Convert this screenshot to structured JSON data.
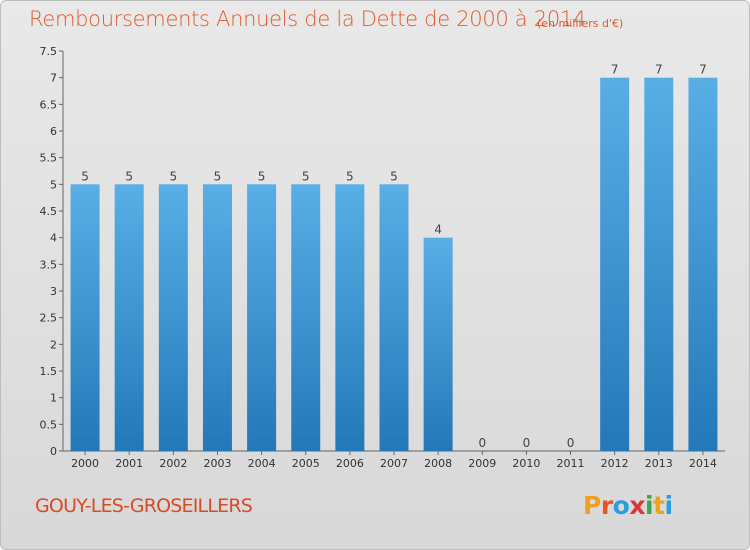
{
  "header": {
    "title": "Remboursements Annuels de la Dette de 2000 à 2014",
    "unit_note": "(en milliers d'€)"
  },
  "footer": {
    "commune": "GOUY-LES-GROSEILLERS",
    "logo": [
      "P",
      "r",
      "o",
      "x",
      "i",
      "t",
      "i"
    ]
  },
  "colors": {
    "title": "#e05a2b",
    "bar_light": "#5aaee6",
    "bar_dark": "#2478b8",
    "logo": [
      "#f0a020",
      "#e8541f",
      "#2a9de0",
      "#d93838",
      "#3aa84a",
      "#f0a020",
      "#2a9de0"
    ]
  },
  "chart_data": {
    "type": "bar",
    "title": "Remboursements Annuels de la Dette de 2000 à 2014",
    "xlabel": "",
    "ylabel": "",
    "categories": [
      "2000",
      "2001",
      "2002",
      "2003",
      "2004",
      "2005",
      "2006",
      "2007",
      "2008",
      "2009",
      "2010",
      "2011",
      "2012",
      "2013",
      "2014"
    ],
    "values": [
      5,
      5,
      5,
      5,
      5,
      5,
      5,
      5,
      4,
      0,
      0,
      0,
      7,
      7,
      7
    ],
    "data_labels": [
      "5",
      "5",
      "5",
      "5",
      "5",
      "5",
      "5",
      "5",
      "4",
      "0",
      "0",
      "0",
      "7",
      "7",
      "7"
    ],
    "ylim": [
      0,
      7.5
    ],
    "yticks": [
      "0",
      "0.5",
      "1",
      "1.5",
      "2",
      "2.5",
      "3",
      "3.5",
      "4",
      "4.5",
      "5",
      "5.5",
      "6",
      "6.5",
      "7",
      "7.5"
    ],
    "ytick_values": [
      0,
      0.5,
      1,
      1.5,
      2,
      2.5,
      3,
      3.5,
      4,
      4.5,
      5,
      5.5,
      6,
      6.5,
      7,
      7.5
    ],
    "grid": false
  }
}
